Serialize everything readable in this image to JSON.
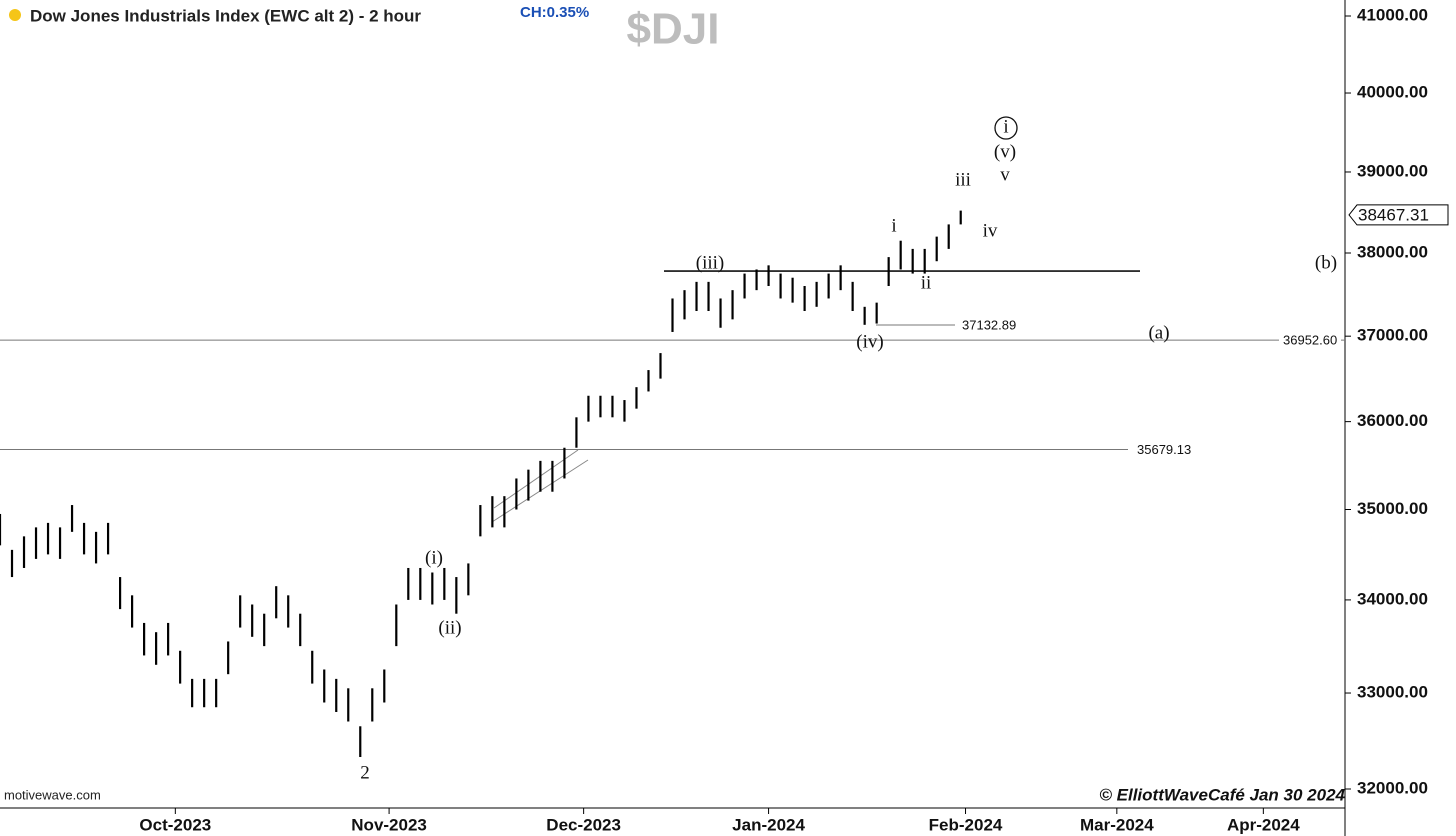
{
  "chart_data": {
    "type": "ohlc",
    "title": "Dow Jones Industrials Index (EWC alt 2) - 2 hour",
    "change": "CH:0.35%",
    "symbol": "$DJI",
    "source": "motivewave.com",
    "copyright": "© ElliottWaveCafé Jan 30 2024",
    "log_scale": true,
    "color": "#000000",
    "x": [
      0,
      5,
      10,
      15,
      20,
      25,
      30,
      35,
      40,
      45,
      50,
      55,
      60,
      65,
      70,
      75,
      80,
      85,
      90,
      95,
      100,
      105,
      110,
      115,
      120,
      125,
      130,
      135,
      140,
      145,
      150,
      155,
      160,
      165,
      170,
      175,
      180,
      185,
      190,
      195,
      200,
      205,
      210,
      215,
      220,
      225,
      230,
      235,
      240,
      245,
      250,
      255,
      260,
      265,
      270,
      275,
      280,
      285,
      290,
      295,
      300,
      305,
      310,
      315,
      320,
      325,
      330,
      335,
      340,
      345,
      350,
      355,
      360,
      365,
      370,
      375,
      380,
      385,
      390,
      395,
      400
    ],
    "high": [
      34950,
      34550,
      34700,
      34800,
      34850,
      34800,
      35050,
      34850,
      34750,
      34850,
      34250,
      34050,
      33750,
      33650,
      33750,
      33450,
      33150,
      33150,
      33150,
      33550,
      34050,
      33950,
      33850,
      34150,
      34050,
      33850,
      33450,
      33250,
      33150,
      33050,
      32650,
      33050,
      33250,
      33950,
      34350,
      34350,
      34300,
      34350,
      34250,
      34400,
      35050,
      35150,
      35150,
      35350,
      35450,
      35550,
      35550,
      35700,
      36050,
      36300,
      36300,
      36300,
      36250,
      36400,
      36600,
      36800,
      37450,
      37550,
      37650,
      37650,
      37450,
      37550,
      37750,
      37800,
      37850,
      37750,
      37700,
      37600,
      37650,
      37750,
      37850,
      37650,
      37350,
      37400,
      37950,
      38150,
      38050,
      38050,
      38200,
      38350,
      38520
    ],
    "low": [
      34600,
      34250,
      34350,
      34450,
      34500,
      34450,
      34750,
      34500,
      34400,
      34500,
      33900,
      33700,
      33400,
      33300,
      33400,
      33100,
      32850,
      32850,
      32850,
      33200,
      33700,
      33600,
      33500,
      33800,
      33700,
      33500,
      33100,
      32900,
      32800,
      32700,
      32330,
      32700,
      32900,
      33500,
      34000,
      34000,
      33950,
      34000,
      33850,
      34050,
      34700,
      34800,
      34800,
      35000,
      35100,
      35200,
      35200,
      35350,
      35700,
      36000,
      36050,
      36050,
      36000,
      36150,
      36350,
      36500,
      37050,
      37200,
      37300,
      37300,
      37100,
      37200,
      37450,
      37550,
      37600,
      37450,
      37400,
      37300,
      37350,
      37450,
      37550,
      37300,
      37135,
      37150,
      37600,
      37800,
      37750,
      37750,
      37900,
      38050,
      38350
    ],
    "xlim": [
      0,
      560
    ],
    "xticks": [
      {
        "value": 73,
        "label": "Oct-2023"
      },
      {
        "value": 162,
        "label": "Nov-2023"
      },
      {
        "value": 243,
        "label": "Dec-2023"
      },
      {
        "value": 320,
        "label": "Jan-2024"
      },
      {
        "value": 402,
        "label": "Feb-2024"
      },
      {
        "value": 465,
        "label": "Mar-2024"
      },
      {
        "value": 526,
        "label": "Apr-2024"
      }
    ],
    "ylim": [
      32000,
      41000
    ],
    "yticks": [
      {
        "value": 32000,
        "label": "32000.00"
      },
      {
        "value": 33000,
        "label": "33000.00"
      },
      {
        "value": 34000,
        "label": "34000.00"
      },
      {
        "value": 35000,
        "label": "35000.00"
      },
      {
        "value": 36000,
        "label": "36000.00"
      },
      {
        "value": 37000,
        "label": "37000.00"
      },
      {
        "value": 38000,
        "label": "38000.00"
      },
      {
        "value": 39000,
        "label": "39000.00"
      },
      {
        "value": 40000,
        "label": "40000.00"
      },
      {
        "value": 41000,
        "label": "41000.00"
      }
    ],
    "last_price": {
      "value": 38467.31,
      "label": "38467.31"
    },
    "levels": [
      {
        "value": 36952.6,
        "label": "36952.60"
      },
      {
        "value": 35679.13,
        "label": "35679.13"
      },
      {
        "value": 37132.89,
        "label": "37132.89"
      }
    ],
    "resistance": 37780,
    "wave_labels": [
      "2",
      "(i)",
      "(ii)",
      "(iii)",
      "(iv)",
      "i",
      "ii",
      "iii",
      "iv",
      "v",
      "(v)",
      "i",
      "(a)",
      "(b)"
    ]
  }
}
